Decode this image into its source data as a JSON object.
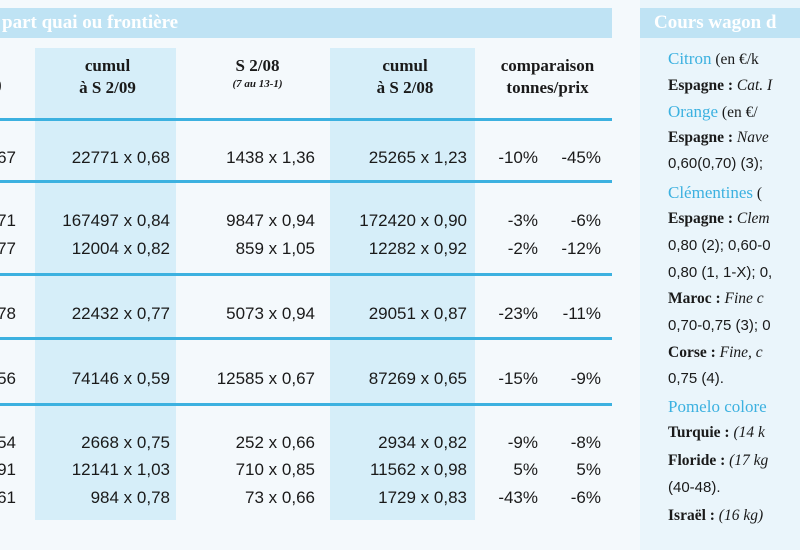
{
  "left_table": {
    "title": "part quai ou frontière",
    "headers": {
      "paren": ")",
      "cumul_09_line1": "cumul",
      "cumul_09_line2": "à S 2/09",
      "s208_line1": "S 2/08",
      "s208_sub": "(7 au 13-1)",
      "cumul_08_line1": "cumul",
      "cumul_08_line2": "à S 2/08",
      "comp_line1": "comparaison",
      "comp_line2": "tonnes/prix"
    },
    "rows": [
      {
        "c0": "67",
        "c1": "22771 x 0,68",
        "c2": "1438 x 1,36",
        "c3": "25265 x 1,23",
        "c4": "-10%",
        "c5": "-45%"
      },
      {
        "c0": "71",
        "c1": "167497 x 0,84",
        "c2": "9847 x 0,94",
        "c3": "172420 x 0,90",
        "c4": "-3%",
        "c5": "-6%"
      },
      {
        "c0": "77",
        "c1": "12004 x 0,82",
        "c2": "859 x 1,05",
        "c3": "12282 x 0,92",
        "c4": "-2%",
        "c5": "-12%"
      },
      {
        "c0": "78",
        "c1": "22432 x 0,77",
        "c2": "5073 x 0,94",
        "c3": "29051 x 0,87",
        "c4": "-23%",
        "c5": "-11%"
      },
      {
        "c0": "56",
        "c1": "74146 x 0,59",
        "c2": "12585 x 0,67",
        "c3": "87269 x 0,65",
        "c4": "-15%",
        "c5": "-9%"
      },
      {
        "c0": "54",
        "c1": "2668 x 0,75",
        "c2": "252 x 0,66",
        "c3": "2934 x 0,82",
        "c4": "-9%",
        "c5": "-8%"
      },
      {
        "c0": "91",
        "c1": "12141 x 1,03",
        "c2": "710 x 0,85",
        "c3": "11562 x 0,98",
        "c4": "5%",
        "c5": "5%"
      },
      {
        "c0": "61",
        "c1": "984 x 0,78",
        "c2": "73 x 0,66",
        "c3": "1729 x 0,83",
        "c4": "-43%",
        "c5": "-6%"
      }
    ]
  },
  "right_panel": {
    "title": "Cours wagon d",
    "lines": [
      {
        "kind": "prod",
        "name": "Citron",
        "rest": " (en €/k"
      },
      {
        "kind": "entry",
        "country": "Espagne :",
        "text": " Cat. I"
      },
      {
        "kind": "prod",
        "name": "Orange",
        "rest": " (en €/"
      },
      {
        "kind": "entry",
        "country": "Espagne :",
        "text": " Nave"
      },
      {
        "kind": "plain",
        "text": "0,60(0,70) (3); "
      },
      {
        "kind": "prod",
        "name": "Clémentines",
        "rest": " ("
      },
      {
        "kind": "entry",
        "country": "Espagne :",
        "text": " Clem"
      },
      {
        "kind": "plain",
        "text": "0,80 (2); 0,60-0"
      },
      {
        "kind": "plain",
        "text": "0,80 (1, 1-X); 0,"
      },
      {
        "kind": "entry",
        "country": "Maroc :",
        "text": " Fine c"
      },
      {
        "kind": "plain",
        "text": "0,70-0,75 (3); 0"
      },
      {
        "kind": "entry",
        "country": "Corse :",
        "text": " Fine, c"
      },
      {
        "kind": "plain",
        "text": "0,75 (4)."
      },
      {
        "kind": "prod",
        "name": "Pomelo colore",
        "rest": ""
      },
      {
        "kind": "entry",
        "country": "Turquie :",
        "text": " (14 k"
      },
      {
        "kind": "entry",
        "country": "Floride :",
        "text": " (17 kg"
      },
      {
        "kind": "plain",
        "text": "(40-48)."
      },
      {
        "kind": "entry",
        "country": "Israël :",
        "text": " (16 kg)"
      }
    ]
  }
}
